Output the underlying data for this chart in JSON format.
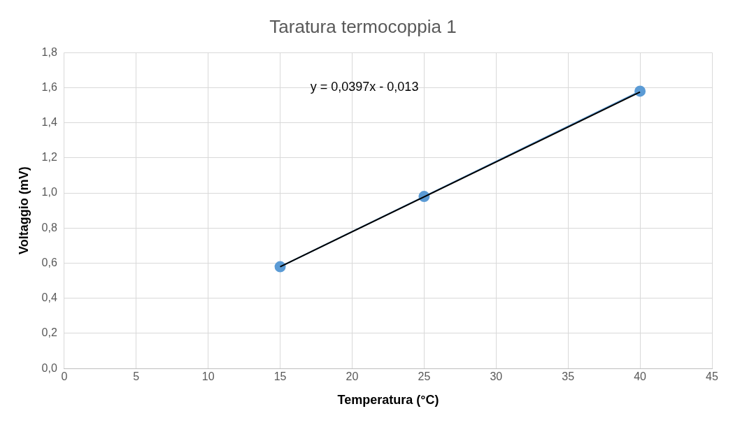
{
  "chart_data": {
    "type": "line",
    "title": "Taratura termocoppia 1",
    "xlabel": "Temperatura (°C)",
    "ylabel": "Voltaggio (mV)",
    "x": [
      15,
      25,
      40
    ],
    "series": [
      {
        "type": "line",
        "color": "#5b9bd5",
        "values": [
          0.58,
          0.98,
          1.58
        ],
        "marker": "circle"
      },
      {
        "type": "line",
        "color": "#000000",
        "x": [
          15,
          40
        ],
        "values": [
          0.58,
          1.575
        ],
        "marker": "none"
      }
    ],
    "xlim": [
      0,
      45
    ],
    "xticks": [
      0,
      5,
      10,
      15,
      20,
      25,
      30,
      35,
      40,
      45
    ],
    "ylim": [
      0,
      1.8
    ],
    "yticks": [
      {
        "value": 0,
        "label": "0,0"
      },
      {
        "value": 0.2,
        "label": "0,2"
      },
      {
        "value": 0.4,
        "label": "0,4"
      },
      {
        "value": 0.6,
        "label": "0,6"
      },
      {
        "value": 0.8,
        "label": "0,8"
      },
      {
        "value": 1,
        "label": "1,0"
      },
      {
        "value": 1.2,
        "label": "1,2"
      },
      {
        "value": 1.4,
        "label": "1,4"
      },
      {
        "value": 1.6,
        "label": "1,6"
      },
      {
        "value": 1.8,
        "label": "1,8"
      }
    ],
    "grid": true,
    "legend": false,
    "annotations": [
      "y = 0,0397x - 0,013"
    ]
  }
}
